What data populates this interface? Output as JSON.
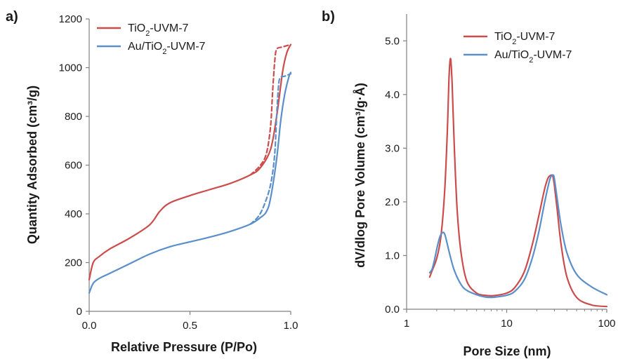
{
  "chart_data": [
    {
      "panel_label": "a)",
      "type": "line",
      "xlabel": "Relative Pressure (P/Po)",
      "ylabel": "Quantity Adsorbed  (cm³/g)",
      "xlim": [
        0,
        1.0
      ],
      "ylim": [
        0,
        1200
      ],
      "x_ticks": [
        "0.0",
        "0.5",
        "1.0"
      ],
      "y_ticks": [
        "0",
        "200",
        "400",
        "600",
        "800",
        "1000",
        "1200"
      ],
      "legend": {
        "position": "top-left",
        "items": [
          {
            "base": "TiO",
            "sub": "2",
            "tail": "-UVM-7",
            "color": "#cc4c4c"
          },
          {
            "base": "Au/TiO",
            "sub": "2",
            "tail": "-UVM-7",
            "color": "#5b8fc9"
          }
        ]
      },
      "series": [
        {
          "color": "#cc4c4c",
          "style": "solid",
          "x": [
            0.0,
            0.02,
            0.05,
            0.1,
            0.2,
            0.3,
            0.35,
            0.4,
            0.5,
            0.6,
            0.7,
            0.8,
            0.85,
            0.9,
            0.93,
            0.96,
            0.98,
            1.0
          ],
          "y": [
            130,
            200,
            225,
            255,
            300,
            355,
            410,
            445,
            475,
            500,
            525,
            560,
            590,
            665,
            800,
            985,
            1060,
            1095
          ]
        },
        {
          "color": "#cc4c4c",
          "style": "dashed",
          "x": [
            0.8,
            0.85,
            0.88,
            0.9,
            0.91,
            0.92,
            0.93,
            0.96,
            1.0
          ],
          "y": [
            560,
            600,
            650,
            760,
            900,
            1020,
            1075,
            1085,
            1095
          ]
        },
        {
          "color": "#5b8fc9",
          "style": "solid",
          "x": [
            0.0,
            0.02,
            0.05,
            0.1,
            0.2,
            0.3,
            0.4,
            0.5,
            0.6,
            0.7,
            0.8,
            0.85,
            0.88,
            0.9,
            0.93,
            0.95,
            0.97,
            0.99,
            1.0
          ],
          "y": [
            75,
            115,
            135,
            155,
            195,
            235,
            265,
            285,
            305,
            328,
            358,
            385,
            410,
            465,
            625,
            780,
            890,
            960,
            980
          ]
        },
        {
          "color": "#5b8fc9",
          "style": "dashed",
          "x": [
            0.8,
            0.84,
            0.87,
            0.9,
            0.92,
            0.93,
            0.94,
            0.95,
            0.97,
            1.0
          ],
          "y": [
            358,
            390,
            440,
            520,
            640,
            800,
            930,
            960,
            965,
            975
          ]
        }
      ]
    },
    {
      "panel_label": "b)",
      "type": "line",
      "xlabel": "Pore Size (nm)",
      "ylabel": "dV/dlog Pore Volume  (cm³/g·Å)",
      "x_scale": "log",
      "xlim": [
        1,
        100
      ],
      "ylim": [
        0,
        5.5
      ],
      "x_ticks": [
        "1",
        "10",
        "100"
      ],
      "y_ticks": [
        "0.0",
        "1.0",
        "2.0",
        "3.0",
        "4.0",
        "5.0"
      ],
      "legend": {
        "position": "top-right",
        "items": [
          {
            "base": "TiO",
            "sub": "2",
            "tail": "-UVM-7",
            "color": "#cc4c4c"
          },
          {
            "base": "Au/TiO",
            "sub": "2",
            "tail": "-UVM-7",
            "color": "#5b8fc9"
          }
        ]
      },
      "series": [
        {
          "color": "#cc4c4c",
          "style": "solid",
          "x": [
            1.7,
            1.8,
            2.0,
            2.2,
            2.4,
            2.55,
            2.65,
            2.75,
            2.85,
            3.0,
            3.2,
            3.5,
            4.0,
            5.0,
            6.0,
            7.0,
            8.0,
            10.0,
            12.0,
            15.0,
            18.0,
            21.0,
            24.0,
            26.0,
            28.0,
            29.0,
            30.0,
            32.0,
            35.0,
            40.0,
            50.0,
            70.0,
            100.0
          ],
          "y": [
            0.6,
            0.72,
            0.95,
            1.35,
            2.2,
            3.3,
            4.3,
            4.67,
            4.2,
            3.0,
            1.85,
            1.05,
            0.52,
            0.3,
            0.26,
            0.25,
            0.26,
            0.3,
            0.4,
            0.7,
            1.2,
            1.75,
            2.25,
            2.45,
            2.5,
            2.47,
            2.3,
            1.85,
            1.2,
            0.6,
            0.22,
            0.08,
            0.05
          ]
        },
        {
          "color": "#5b8fc9",
          "style": "solid",
          "x": [
            1.7,
            1.8,
            1.9,
            2.0,
            2.15,
            2.3,
            2.4,
            2.5,
            2.7,
            3.0,
            3.5,
            4.0,
            5.0,
            6.0,
            7.0,
            8.0,
            10.0,
            12.0,
            15.0,
            18.0,
            21.0,
            24.0,
            27.0,
            29.0,
            30.0,
            32.0,
            35.0,
            40.0,
            50.0,
            70.0,
            100.0
          ],
          "y": [
            0.68,
            0.75,
            0.92,
            1.12,
            1.35,
            1.43,
            1.4,
            1.28,
            1.02,
            0.72,
            0.46,
            0.35,
            0.27,
            0.23,
            0.22,
            0.23,
            0.26,
            0.33,
            0.55,
            0.95,
            1.45,
            2.0,
            2.42,
            2.5,
            2.42,
            2.05,
            1.55,
            1.05,
            0.65,
            0.42,
            0.27
          ]
        }
      ]
    }
  ]
}
